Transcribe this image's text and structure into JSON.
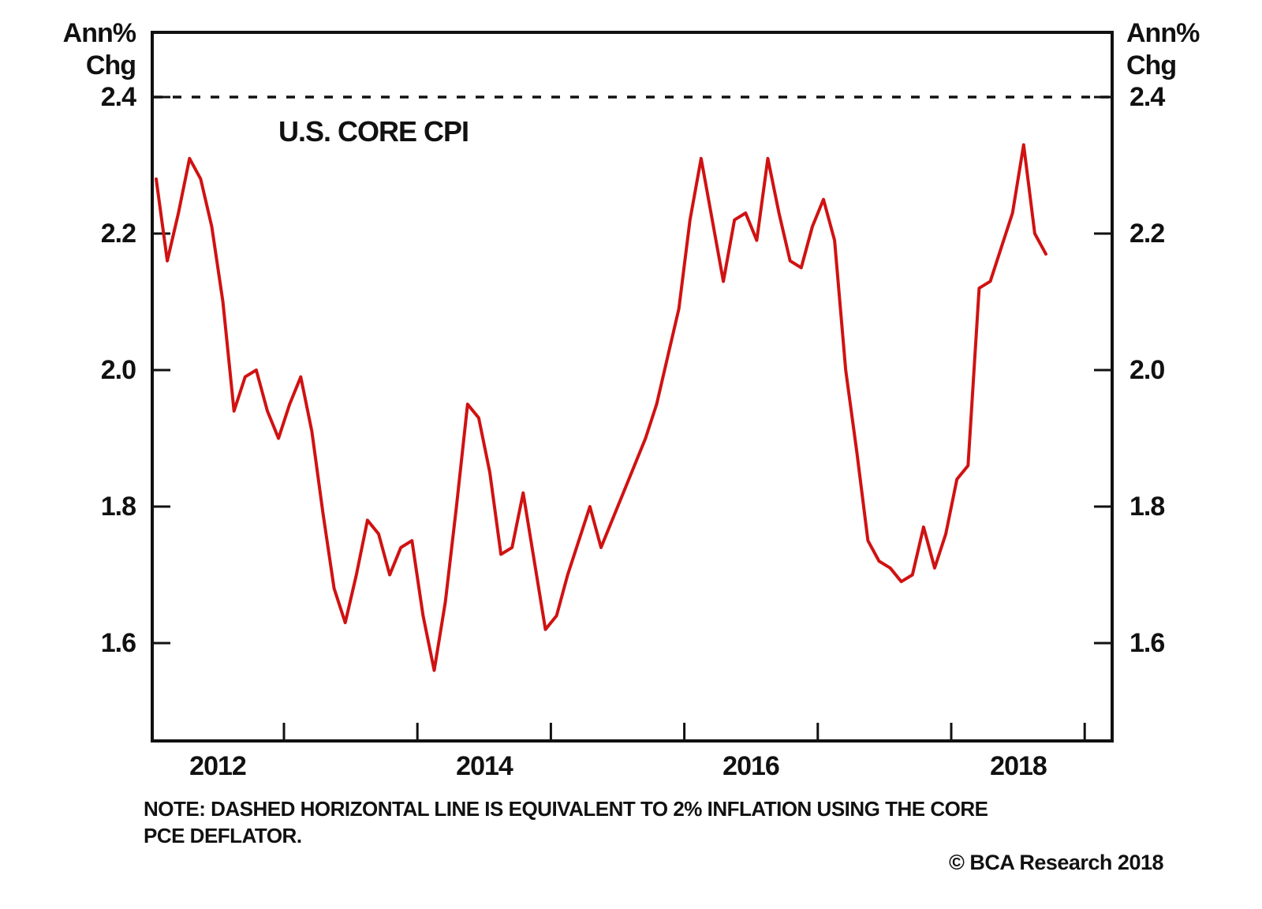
{
  "axis_titles": {
    "left": [
      "Ann%",
      "Chg"
    ],
    "right": [
      "Ann%",
      "Chg"
    ]
  },
  "footer": {
    "note_line1": "NOTE: DASHED HORIZONTAL LINE IS EQUIVALENT TO 2% INFLATION USING THE CORE",
    "note_line2": "PCE DEFLATOR.",
    "copyright": "© BCA Research 2018"
  },
  "chart_data": {
    "type": "line",
    "title": "U.S. CORE CPI",
    "ylabel": "Ann% Chg",
    "ylim": [
      1.45,
      2.5
    ],
    "y_ticks": [
      "2.4",
      "2.2",
      "2.0",
      "1.8",
      "1.6"
    ],
    "y_tick_values": [
      2.4,
      2.2,
      2.0,
      1.8,
      1.6
    ],
    "x_labels": [
      "2012",
      "2014",
      "2016",
      "2018"
    ],
    "grid": "off",
    "legend_position": "none",
    "reference_line": {
      "value": 2.4,
      "style": "dashed",
      "color": "#111111",
      "meaning": "Equivalent to 2% inflation using the core PCE deflator"
    },
    "series": [
      {
        "name": "U.S. Core CPI (annual % change)",
        "color": "#d01212",
        "frequency": "monthly",
        "start": "2012-01",
        "end": "2018-09",
        "values": [
          2.28,
          2.16,
          2.23,
          2.31,
          2.28,
          2.21,
          2.1,
          1.94,
          1.99,
          2.0,
          1.94,
          1.9,
          1.95,
          1.99,
          1.91,
          1.79,
          1.68,
          1.63,
          1.7,
          1.78,
          1.76,
          1.7,
          1.74,
          1.75,
          1.64,
          1.56,
          1.66,
          1.8,
          1.95,
          1.93,
          1.85,
          1.73,
          1.74,
          1.82,
          1.72,
          1.62,
          1.64,
          1.7,
          1.75,
          1.8,
          1.74,
          1.78,
          1.82,
          1.86,
          1.9,
          1.95,
          2.02,
          2.09,
          2.22,
          2.31,
          2.22,
          2.13,
          2.22,
          2.23,
          2.19,
          2.31,
          2.23,
          2.16,
          2.15,
          2.21,
          2.25,
          2.19,
          2.0,
          1.88,
          1.75,
          1.72,
          1.71,
          1.69,
          1.7,
          1.77,
          1.71,
          1.76,
          1.84,
          1.86,
          2.12,
          2.13,
          2.18,
          2.23,
          2.33,
          2.2,
          2.17
        ]
      }
    ]
  }
}
